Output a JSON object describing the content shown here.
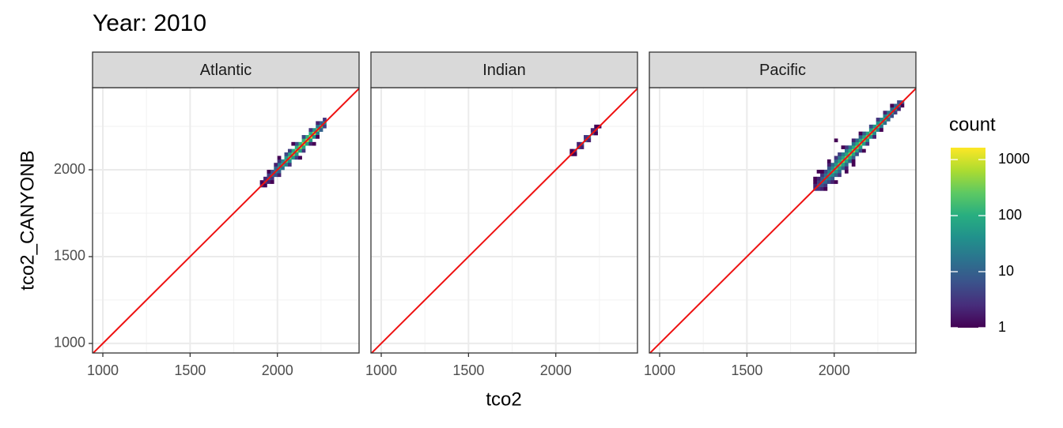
{
  "chart_data": {
    "type": "bin2d",
    "title": "Year: 2010",
    "x_label": "tco2",
    "y_label": "tco2_CANYONB",
    "xlim": [
      941,
      2468
    ],
    "ylim": [
      945,
      2473
    ],
    "xticks": [
      1000,
      1500,
      2000
    ],
    "yticks": [
      1000,
      1500,
      2000
    ],
    "minor_xticks": [
      1250,
      1750,
      2250
    ],
    "minor_yticks": [
      1250,
      1750,
      2250
    ],
    "grid": true,
    "binwidth": 20,
    "reference_line": {
      "slope": 1,
      "intercept": 0,
      "color": "#ee1111"
    },
    "legend": {
      "title": "count",
      "colormap": "viridis",
      "log": true,
      "lim": [
        1,
        1630
      ],
      "ticks": [
        1,
        10,
        100,
        1000
      ]
    },
    "facets": [
      {
        "name": "Atlantic",
        "bins": [
          [
            1900,
            1900,
            2
          ],
          [
            1920,
            1920,
            4
          ],
          [
            1940,
            1940,
            8
          ],
          [
            1960,
            1960,
            15
          ],
          [
            1980,
            1980,
            30
          ],
          [
            2000,
            2000,
            60
          ],
          [
            2020,
            2020,
            120
          ],
          [
            2040,
            2040,
            200
          ],
          [
            2060,
            2060,
            300
          ],
          [
            2080,
            2080,
            400
          ],
          [
            2100,
            2100,
            500
          ],
          [
            2120,
            2120,
            600
          ],
          [
            2140,
            2140,
            700
          ],
          [
            2160,
            2160,
            800
          ],
          [
            2180,
            2180,
            900
          ],
          [
            2200,
            2200,
            700
          ],
          [
            2220,
            2220,
            400
          ],
          [
            2240,
            2240,
            150
          ],
          [
            2260,
            2260,
            40
          ],
          [
            1900,
            1920,
            1
          ],
          [
            1920,
            1940,
            2
          ],
          [
            1940,
            1960,
            4
          ],
          [
            1960,
            1980,
            6
          ],
          [
            1980,
            2000,
            10
          ],
          [
            2000,
            2020,
            20
          ],
          [
            2020,
            2040,
            30
          ],
          [
            2040,
            2060,
            50
          ],
          [
            2060,
            2080,
            70
          ],
          [
            2080,
            2100,
            90
          ],
          [
            2100,
            2120,
            110
          ],
          [
            2120,
            2140,
            120
          ],
          [
            2140,
            2160,
            130
          ],
          [
            2160,
            2180,
            120
          ],
          [
            2180,
            2200,
            90
          ],
          [
            2200,
            2220,
            50
          ],
          [
            2220,
            2240,
            20
          ],
          [
            2240,
            2260,
            8
          ],
          [
            2260,
            2280,
            3
          ],
          [
            1920,
            1900,
            1
          ],
          [
            1940,
            1920,
            2
          ],
          [
            1960,
            1940,
            3
          ],
          [
            1980,
            1960,
            6
          ],
          [
            2000,
            1980,
            10
          ],
          [
            2020,
            2000,
            15
          ],
          [
            2040,
            2020,
            25
          ],
          [
            2060,
            2040,
            40
          ],
          [
            2080,
            2060,
            50
          ],
          [
            2100,
            2080,
            60
          ],
          [
            2120,
            2100,
            70
          ],
          [
            2140,
            2120,
            80
          ],
          [
            2160,
            2140,
            70
          ],
          [
            2180,
            2160,
            60
          ],
          [
            2200,
            2180,
            40
          ],
          [
            2220,
            2200,
            25
          ],
          [
            2240,
            2220,
            10
          ],
          [
            2260,
            2240,
            4
          ],
          [
            1940,
            1980,
            1
          ],
          [
            1980,
            2020,
            2
          ],
          [
            2000,
            2040,
            3
          ],
          [
            2040,
            2080,
            5
          ],
          [
            2060,
            2100,
            4
          ],
          [
            2100,
            2140,
            6
          ],
          [
            2140,
            2180,
            5
          ],
          [
            2180,
            2220,
            3
          ],
          [
            2220,
            2260,
            2
          ],
          [
            1960,
            1920,
            1
          ],
          [
            2000,
            1960,
            2
          ],
          [
            2060,
            2020,
            3
          ],
          [
            2100,
            2060,
            4
          ],
          [
            2140,
            2100,
            3
          ],
          [
            2180,
            2140,
            2
          ],
          [
            2220,
            2180,
            1
          ],
          [
            2000,
            2060,
            1
          ],
          [
            2080,
            2140,
            1
          ],
          [
            2120,
            2060,
            1
          ],
          [
            2200,
            2140,
            1
          ]
        ]
      },
      {
        "name": "Indian",
        "bins": [
          [
            2080,
            2080,
            1
          ],
          [
            2100,
            2100,
            3
          ],
          [
            2120,
            2120,
            4
          ],
          [
            2140,
            2140,
            6
          ],
          [
            2160,
            2160,
            8
          ],
          [
            2180,
            2180,
            10
          ],
          [
            2200,
            2200,
            6
          ],
          [
            2220,
            2220,
            3
          ],
          [
            2240,
            2240,
            1
          ],
          [
            2080,
            2100,
            1
          ],
          [
            2120,
            2140,
            2
          ],
          [
            2160,
            2180,
            3
          ],
          [
            2200,
            2220,
            2
          ],
          [
            2220,
            2240,
            1
          ],
          [
            2100,
            2080,
            1
          ],
          [
            2140,
            2120,
            2
          ],
          [
            2180,
            2160,
            2
          ],
          [
            2220,
            2200,
            1
          ]
        ]
      },
      {
        "name": "Pacific",
        "bins": [
          [
            1880,
            1880,
            3
          ],
          [
            1900,
            1900,
            8
          ],
          [
            1920,
            1920,
            20
          ],
          [
            1940,
            1940,
            40
          ],
          [
            1960,
            1960,
            80
          ],
          [
            1980,
            1980,
            150
          ],
          [
            2000,
            2000,
            250
          ],
          [
            2020,
            2020,
            350
          ],
          [
            2040,
            2040,
            400
          ],
          [
            2060,
            2060,
            450
          ],
          [
            2080,
            2080,
            500
          ],
          [
            2100,
            2100,
            500
          ],
          [
            2120,
            2120,
            500
          ],
          [
            2140,
            2140,
            450
          ],
          [
            2160,
            2160,
            400
          ],
          [
            2180,
            2180,
            400
          ],
          [
            2200,
            2200,
            350
          ],
          [
            2220,
            2220,
            300
          ],
          [
            2240,
            2240,
            250
          ],
          [
            2260,
            2260,
            200
          ],
          [
            2280,
            2280,
            150
          ],
          [
            2300,
            2300,
            120
          ],
          [
            2320,
            2320,
            80
          ],
          [
            2340,
            2340,
            50
          ],
          [
            2360,
            2360,
            30
          ],
          [
            2380,
            2380,
            10
          ],
          [
            1880,
            1900,
            2
          ],
          [
            1900,
            1920,
            4
          ],
          [
            1920,
            1940,
            8
          ],
          [
            1940,
            1960,
            15
          ],
          [
            1960,
            1980,
            25
          ],
          [
            1980,
            2000,
            40
          ],
          [
            2000,
            2020,
            60
          ],
          [
            2020,
            2040,
            70
          ],
          [
            2040,
            2060,
            80
          ],
          [
            2060,
            2080,
            90
          ],
          [
            2080,
            2100,
            100
          ],
          [
            2100,
            2120,
            100
          ],
          [
            2120,
            2140,
            100
          ],
          [
            2140,
            2160,
            90
          ],
          [
            2160,
            2180,
            80
          ],
          [
            2180,
            2200,
            70
          ],
          [
            2200,
            2220,
            60
          ],
          [
            2220,
            2240,
            50
          ],
          [
            2240,
            2260,
            40
          ],
          [
            2260,
            2280,
            30
          ],
          [
            2280,
            2300,
            25
          ],
          [
            2300,
            2320,
            18
          ],
          [
            2320,
            2340,
            12
          ],
          [
            2340,
            2360,
            8
          ],
          [
            2360,
            2380,
            5
          ],
          [
            1900,
            1880,
            3
          ],
          [
            1920,
            1900,
            6
          ],
          [
            1940,
            1920,
            12
          ],
          [
            1960,
            1940,
            20
          ],
          [
            1980,
            1960,
            35
          ],
          [
            2000,
            1980,
            50
          ],
          [
            2020,
            2000,
            60
          ],
          [
            2040,
            2020,
            70
          ],
          [
            2060,
            2040,
            80
          ],
          [
            2080,
            2060,
            80
          ],
          [
            2100,
            2080,
            80
          ],
          [
            2120,
            2100,
            70
          ],
          [
            2140,
            2120,
            60
          ],
          [
            2160,
            2140,
            50
          ],
          [
            2180,
            2160,
            45
          ],
          [
            2200,
            2180,
            40
          ],
          [
            2220,
            2200,
            30
          ],
          [
            2240,
            2220,
            25
          ],
          [
            2260,
            2240,
            20
          ],
          [
            2280,
            2260,
            15
          ],
          [
            2300,
            2280,
            10
          ],
          [
            2320,
            2300,
            6
          ],
          [
            2340,
            2320,
            4
          ],
          [
            2360,
            2340,
            2
          ],
          [
            2380,
            2360,
            1
          ],
          [
            1880,
            1920,
            1
          ],
          [
            1900,
            1940,
            2
          ],
          [
            1920,
            1960,
            3
          ],
          [
            1940,
            1980,
            5
          ],
          [
            1960,
            2000,
            8
          ],
          [
            1980,
            2020,
            12
          ],
          [
            2000,
            2040,
            15
          ],
          [
            2020,
            2060,
            18
          ],
          [
            2040,
            2080,
            20
          ],
          [
            2060,
            2100,
            20
          ],
          [
            2080,
            2120,
            18
          ],
          [
            2100,
            2140,
            15
          ],
          [
            2120,
            2160,
            12
          ],
          [
            2140,
            2180,
            10
          ],
          [
            2160,
            2200,
            8
          ],
          [
            2200,
            2240,
            5
          ],
          [
            2240,
            2280,
            3
          ],
          [
            2280,
            2320,
            2
          ],
          [
            2320,
            2360,
            1
          ],
          [
            1920,
            1880,
            2
          ],
          [
            1940,
            1900,
            3
          ],
          [
            1960,
            1920,
            5
          ],
          [
            1980,
            1940,
            8
          ],
          [
            2000,
            1960,
            10
          ],
          [
            2020,
            1980,
            12
          ],
          [
            2040,
            2000,
            12
          ],
          [
            2060,
            2020,
            12
          ],
          [
            2080,
            2040,
            10
          ],
          [
            2100,
            2060,
            8
          ],
          [
            2120,
            2080,
            6
          ],
          [
            2140,
            2100,
            5
          ],
          [
            2180,
            2140,
            3
          ],
          [
            2220,
            2180,
            2
          ],
          [
            2260,
            2220,
            1
          ],
          [
            1880,
            1940,
            1
          ],
          [
            1920,
            1980,
            1
          ],
          [
            1960,
            2020,
            2
          ],
          [
            2000,
            2060,
            3
          ],
          [
            2020,
            2080,
            4
          ],
          [
            2060,
            2120,
            3
          ],
          [
            2100,
            2160,
            2
          ],
          [
            2140,
            2200,
            1
          ],
          [
            1940,
            1880,
            1
          ],
          [
            1980,
            1920,
            2
          ],
          [
            2020,
            1960,
            3
          ],
          [
            2060,
            2000,
            2
          ],
          [
            2100,
            2040,
            1
          ],
          [
            2160,
            2100,
            1
          ],
          [
            1900,
            1980,
            1
          ],
          [
            1960,
            2040,
            1
          ],
          [
            2040,
            2120,
            1
          ],
          [
            2060,
            1980,
            1
          ],
          [
            2100,
            2020,
            1
          ],
          [
            2000,
            2160,
            1
          ],
          [
            2000,
            1920,
            1
          ]
        ]
      }
    ]
  }
}
